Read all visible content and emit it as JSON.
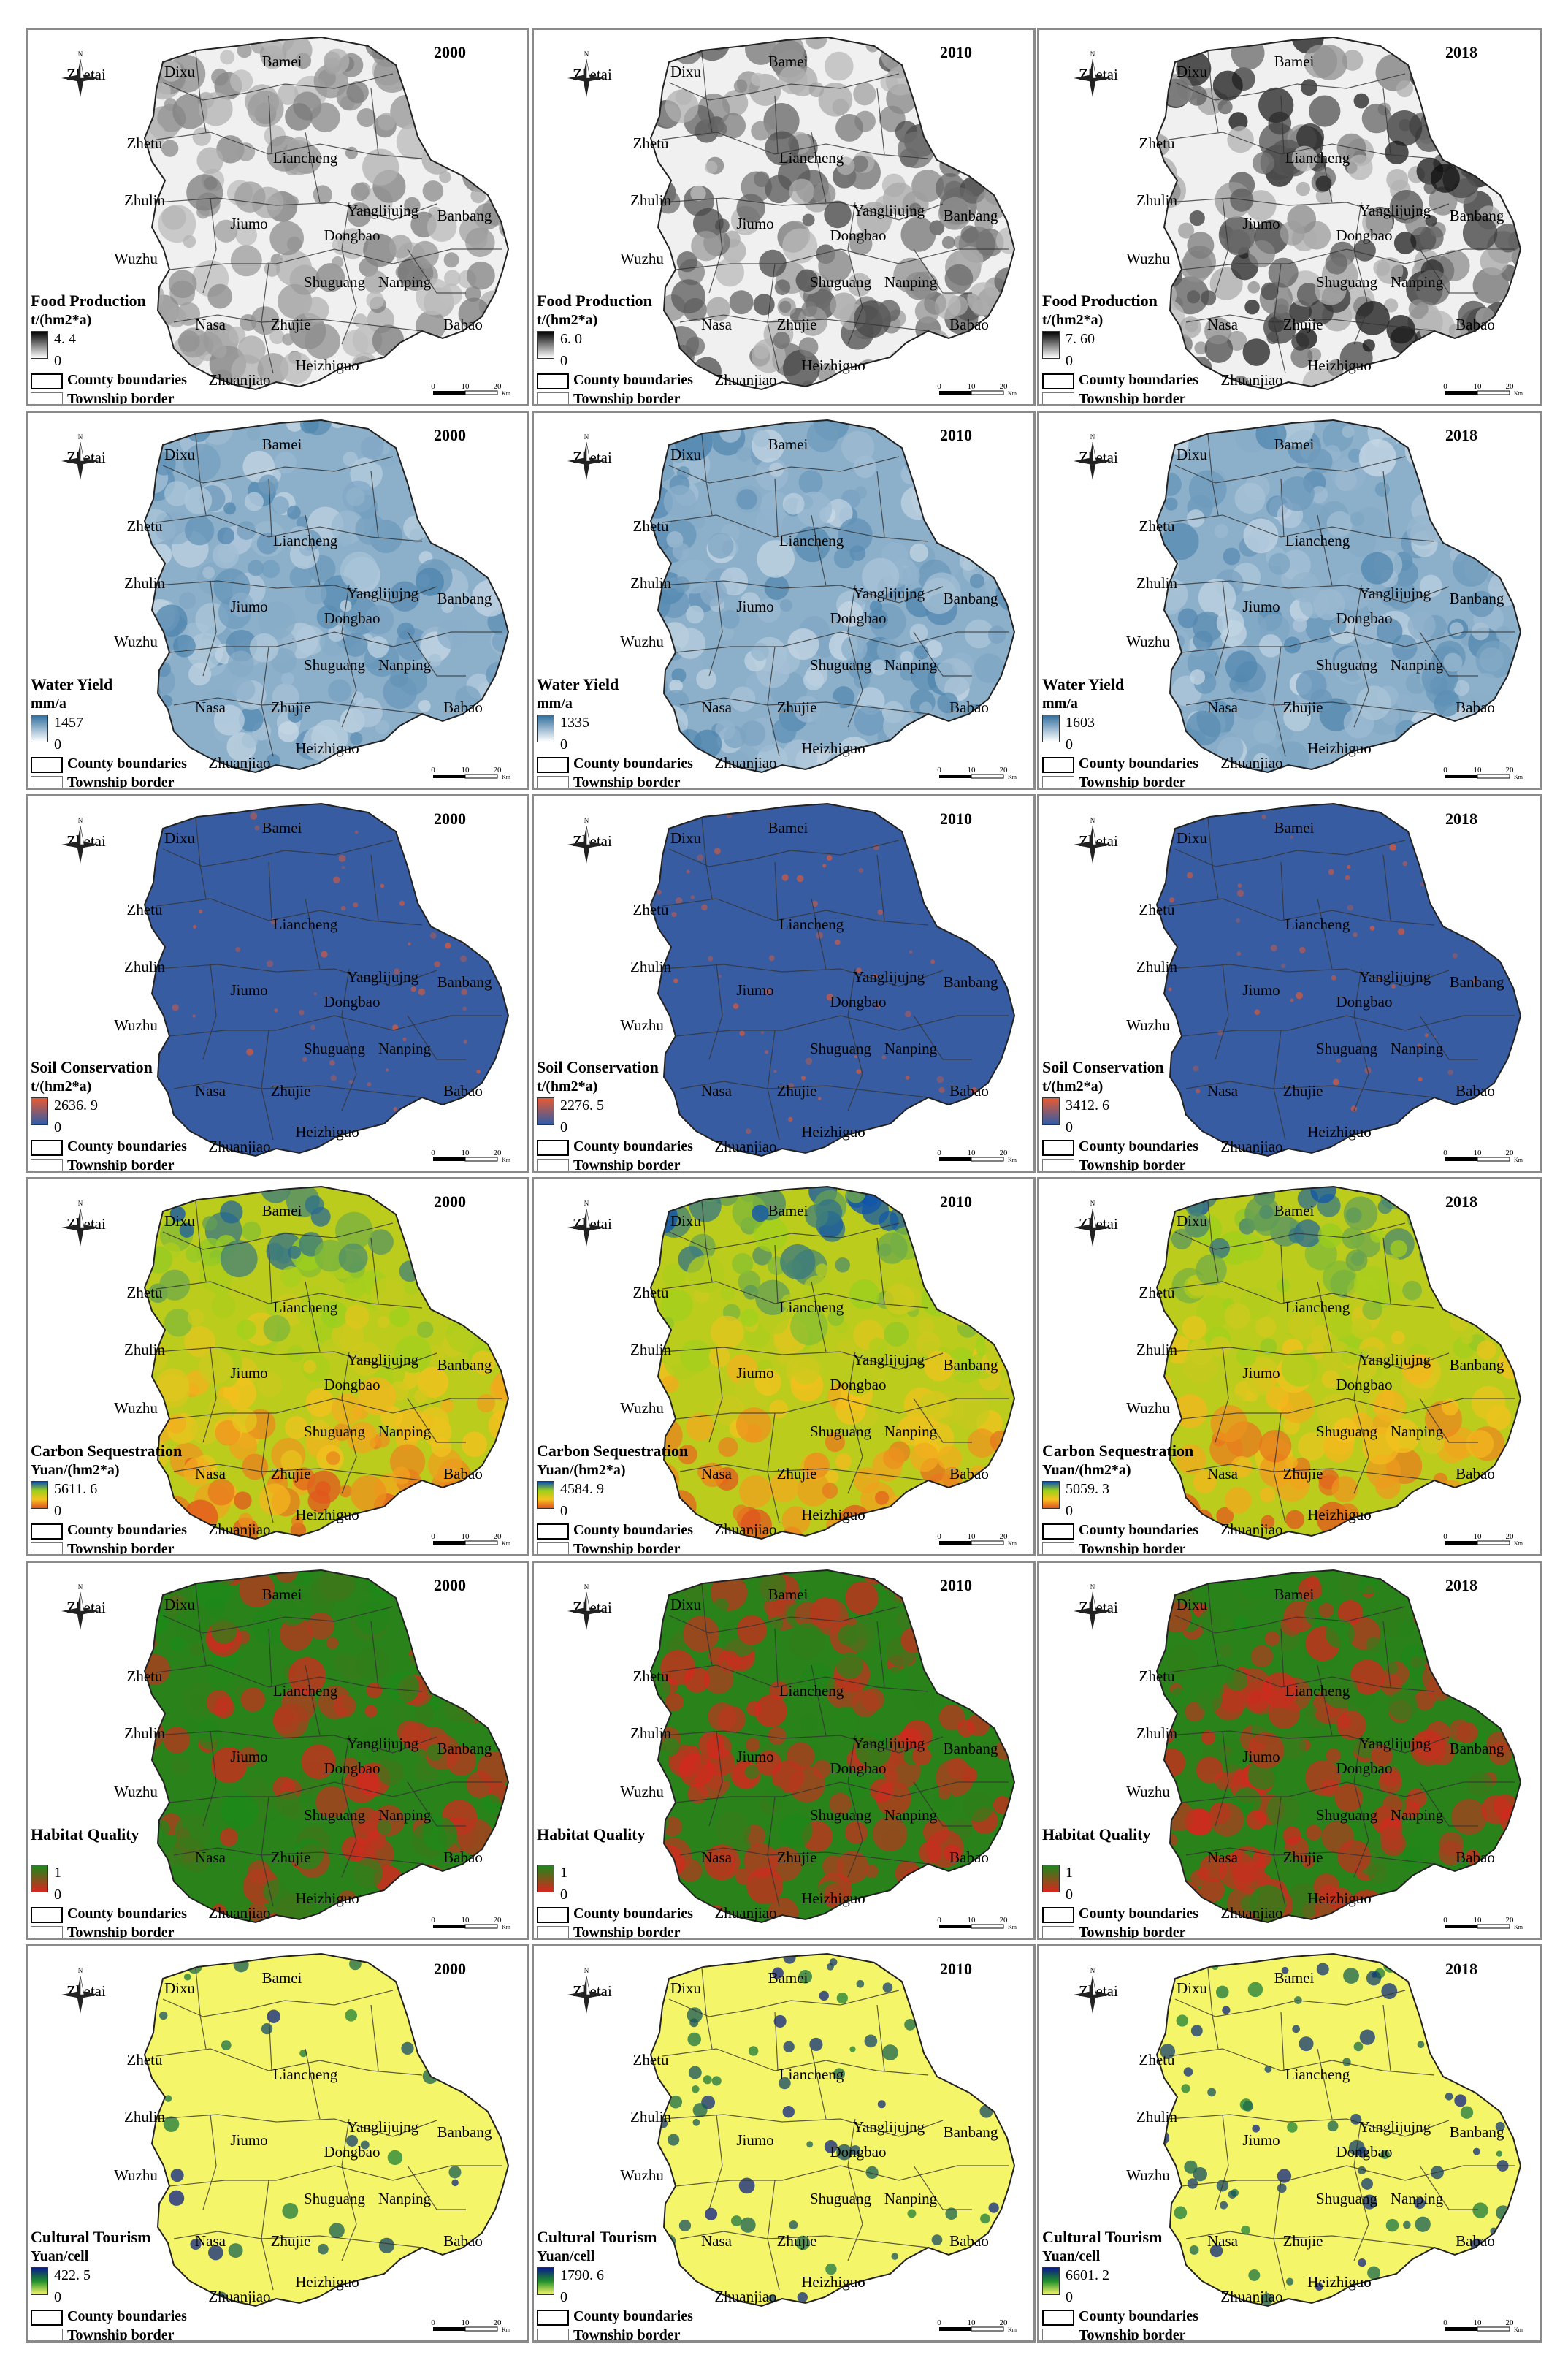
{
  "towns": [
    "Zhetai",
    "Dixu",
    "Bamei",
    "Zhetu",
    "Liancheng",
    "Zhulin",
    "Jiumo",
    "Yanglijujng",
    "Banbang",
    "Wuzhu",
    "Dongbao",
    "Shuguang",
    "Nanping",
    "Nasa",
    "Zhujie",
    "Babao",
    "Heizhiguo",
    "Zhuanjiao"
  ],
  "legend_common": {
    "county_label": "County boundaries",
    "township_label": "Township border",
    "min_value": "0",
    "scale_numbers": [
      "0",
      "10",
      "20"
    ],
    "scale_unit": "Km",
    "north_label": "N"
  },
  "colors": {
    "food": [
      "#ffffff",
      "#000000"
    ],
    "water": [
      "#ffffff",
      "#2e6e9e"
    ],
    "soil": [
      "#2f5ca8",
      "#e85a32"
    ],
    "carbon": [
      "#e0541e",
      "#f6c21e",
      "#9bd11c",
      "#0a4fb0"
    ],
    "habitat": [
      "#d7261e",
      "#1a8a1a"
    ],
    "tourism": [
      "#f5f56a",
      "#1f8f2a",
      "#0a1a8a"
    ]
  },
  "rows": [
    {
      "theme": "food",
      "title": "Food Production",
      "unit": "t/(hm2*a)",
      "panels": [
        {
          "year": "2000",
          "max": "4. 4"
        },
        {
          "year": "2010",
          "max": "6. 0"
        },
        {
          "year": "2018",
          "max": "7. 60"
        }
      ]
    },
    {
      "theme": "water",
      "title": "Water Yield",
      "unit": "mm/a",
      "panels": [
        {
          "year": "2000",
          "max": "1457"
        },
        {
          "year": "2010",
          "max": "1335"
        },
        {
          "year": "2018",
          "max": "1603"
        }
      ]
    },
    {
      "theme": "soil",
      "title": "Soil Conservation",
      "unit": "t/(hm2*a)",
      "panels": [
        {
          "year": "2000",
          "max": "2636. 9"
        },
        {
          "year": "2010",
          "max": "2276. 5"
        },
        {
          "year": "2018",
          "max": "3412. 6"
        }
      ]
    },
    {
      "theme": "carbon",
      "title": "Carbon Sequestration",
      "unit": "Yuan/(hm2*a)",
      "panels": [
        {
          "year": "2000",
          "max": "5611. 6"
        },
        {
          "year": "2010",
          "max": "4584. 9"
        },
        {
          "year": "2018",
          "max": "5059. 3"
        }
      ]
    },
    {
      "theme": "habitat",
      "title": "Habitat Quality",
      "unit": "",
      "panels": [
        {
          "year": "2000",
          "max": "1"
        },
        {
          "year": "2010",
          "max": "1"
        },
        {
          "year": "2018",
          "max": "1"
        }
      ]
    },
    {
      "theme": "tourism",
      "title": "Cultural Tourism",
      "unit": "Yuan/cell",
      "panels": [
        {
          "year": "2000",
          "max": "422. 5"
        },
        {
          "year": "2010",
          "max": "1790. 6"
        },
        {
          "year": "2018",
          "max": "6601. 2"
        }
      ]
    }
  ]
}
